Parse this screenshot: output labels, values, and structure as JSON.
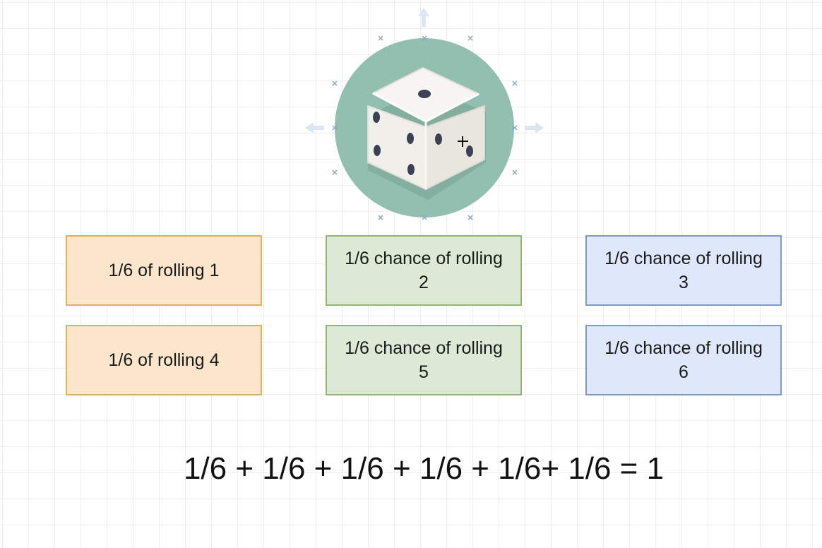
{
  "diagram": {
    "icon": "dice-icon",
    "colors": {
      "circle": "#93bfb0",
      "orange_fill": "#fbe6cb",
      "orange_border": "#e0b062",
      "green_fill": "#dde8d5",
      "green_border": "#90b873",
      "blue_fill": "#dfe8fa",
      "blue_border": "#8099c9"
    },
    "boxes": [
      {
        "text": "1/6 of rolling 1",
        "color": "orange"
      },
      {
        "text": "1/6 chance of rolling 2",
        "color": "green"
      },
      {
        "text": "1/6 chance of rolling 3",
        "color": "blue"
      },
      {
        "text": "1/6 of rolling 4",
        "color": "orange"
      },
      {
        "text": "1/6 chance of rolling 5",
        "color": "green"
      },
      {
        "text": "1/6 chance of rolling 6",
        "color": "blue"
      }
    ],
    "formula": "1/6 + 1/6 + 1/6 + 1/6 + 1/6+ 1/6 = 1"
  }
}
